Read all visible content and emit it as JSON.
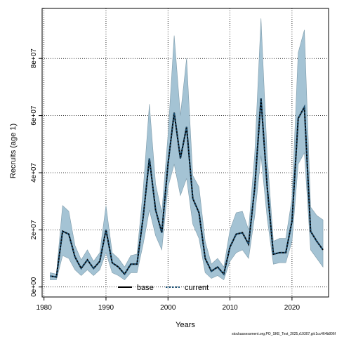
{
  "chart_data": {
    "type": "area",
    "title": "",
    "xlabel": "Years",
    "ylabel": "Recruits (age 1)",
    "xlim": [
      1979.7,
      2025.9
    ],
    "ylim": [
      -3500000,
      97500000
    ],
    "x_ticks": [
      1980,
      1990,
      2000,
      2010,
      2020
    ],
    "x_tick_labels": [
      "1980",
      "1990",
      "2000",
      "2010",
      "2020"
    ],
    "y_ticks": [
      0,
      20000000,
      40000000,
      60000000,
      80000000
    ],
    "y_tick_labels": [
      "0e+00",
      "2e+07",
      "4e+07",
      "6e+07",
      "8e+07"
    ],
    "grid": true,
    "legend_position": "bottom",
    "colors": {
      "band": "#a4c3d4",
      "band_edge": "#7f9cab",
      "base": "#000000",
      "current": "#1a4f73"
    },
    "x": [
      1981,
      1982,
      1983,
      1984,
      1985,
      1986,
      1987,
      1988,
      1989,
      1990,
      1991,
      1992,
      1993,
      1994,
      1995,
      1996,
      1997,
      1998,
      1999,
      2000,
      2001,
      2002,
      2003,
      2004,
      2005,
      2006,
      2007,
      2008,
      2009,
      2010,
      2011,
      2012,
      2013,
      2014,
      2015,
      2016,
      2017,
      2018,
      2019,
      2020,
      2021,
      2022,
      2023,
      2024,
      2025
    ],
    "band": {
      "upper": [
        5000000,
        4500000,
        28500000,
        26500000,
        14500000,
        9500000,
        13000000,
        9000000,
        12000000,
        28500000,
        12000000,
        10000000,
        7000000,
        11000000,
        11500000,
        34000000,
        64000000,
        36000000,
        26000000,
        53000000,
        88000000,
        60000000,
        80000000,
        39000000,
        35000000,
        16000000,
        8000000,
        10000000,
        7000000,
        20000000,
        26000000,
        26500000,
        20000000,
        47000000,
        94000000,
        46000000,
        16000000,
        17000000,
        17000000,
        31000000,
        82000000,
        90000000,
        28000000,
        25000000,
        23500000
      ],
      "lower": [
        2500000,
        2500000,
        11000000,
        10000000,
        6000000,
        4000000,
        6000000,
        4000000,
        6000000,
        12000000,
        5000000,
        4000000,
        2500000,
        5000000,
        5000000,
        15000000,
        27000000,
        18000000,
        13000000,
        35000000,
        43000000,
        32000000,
        38000000,
        22000000,
        17000000,
        5000000,
        3000000,
        4000000,
        2500000,
        9000000,
        12000000,
        13000000,
        10000000,
        25000000,
        46000000,
        24000000,
        8000000,
        8500000,
        8500000,
        16000000,
        43000000,
        47000000,
        13000000,
        10000000,
        7000000
      ]
    },
    "series": [
      {
        "name": "base",
        "values": [
          3800000,
          3500000,
          19500000,
          18500000,
          10500000,
          6500000,
          9500000,
          6500000,
          9000000,
          20000000,
          8500000,
          7000000,
          4500000,
          8000000,
          8000000,
          24500000,
          45000000,
          27000000,
          19000000,
          43000000,
          61000000,
          45000000,
          56000000,
          31000000,
          26000000,
          10000000,
          5500000,
          7000000,
          4500000,
          14000000,
          18500000,
          19000000,
          15000000,
          35000000,
          66000000,
          35000000,
          11500000,
          12000000,
          12000000,
          23000000,
          59000000,
          63000000,
          19500000,
          16000000,
          13000000
        ]
      },
      {
        "name": "current",
        "values": [
          3800000,
          3500000,
          19500000,
          18500000,
          10500000,
          6500000,
          9500000,
          6500000,
          9000000,
          20000000,
          8500000,
          7000000,
          4500000,
          8000000,
          8000000,
          24500000,
          45000000,
          27000000,
          19000000,
          43000000,
          61000000,
          45000000,
          56000000,
          31000000,
          26000000,
          10000000,
          5500000,
          7000000,
          4500000,
          14000000,
          18500000,
          19000000,
          15000000,
          35000000,
          66000000,
          35000000,
          11500000,
          12000000,
          12000000,
          23000000,
          59000000,
          63000000,
          19500000,
          16000000,
          13000000
        ]
      }
    ]
  },
  "legend": {
    "items": [
      "base",
      "current"
    ]
  },
  "footer": {
    "text": "stockassessment.org,PO_SKE_Test_2025,r19307,git:1cc464b806f"
  }
}
